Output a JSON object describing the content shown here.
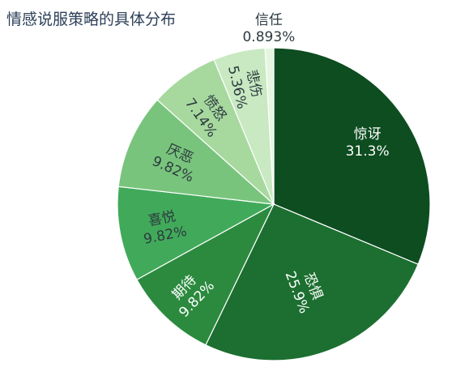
{
  "chart_data": {
    "type": "pie",
    "title": "情感说服策略的具体分布",
    "start_angle": "top",
    "direction": "clockwise",
    "labels_rotated": true,
    "slices": [
      {
        "name": "惊讶",
        "value": 31.3,
        "label": "31.3%",
        "color": "#0d4d20",
        "text_color": "#ffffff"
      },
      {
        "name": "恐惧",
        "value": 25.9,
        "label": "25.9%",
        "color": "#1c6f30",
        "text_color": "#ffffff"
      },
      {
        "name": "期待",
        "value": 9.82,
        "label": "9.82%",
        "color": "#2b8a3e",
        "text_color": "#ffffff"
      },
      {
        "name": "喜悦",
        "value": 9.82,
        "label": "9.82%",
        "color": "#41aa5a",
        "text_color": "#2d3b40"
      },
      {
        "name": "厌恶",
        "value": 9.82,
        "label": "9.82%",
        "color": "#78c47c",
        "text_color": "#2d3b40"
      },
      {
        "name": "愤怒",
        "value": 7.14,
        "label": "7.14%",
        "color": "#a7d99f",
        "text_color": "#2d3b40"
      },
      {
        "name": "悲伤",
        "value": 5.36,
        "label": "5.36%",
        "color": "#c8e9c1",
        "text_color": "#2d3b40"
      },
      {
        "name": "信任",
        "value": 0.893,
        "label": "0.893%",
        "color": "#e6f5e0",
        "text_color": "#2d3b40"
      }
    ]
  }
}
